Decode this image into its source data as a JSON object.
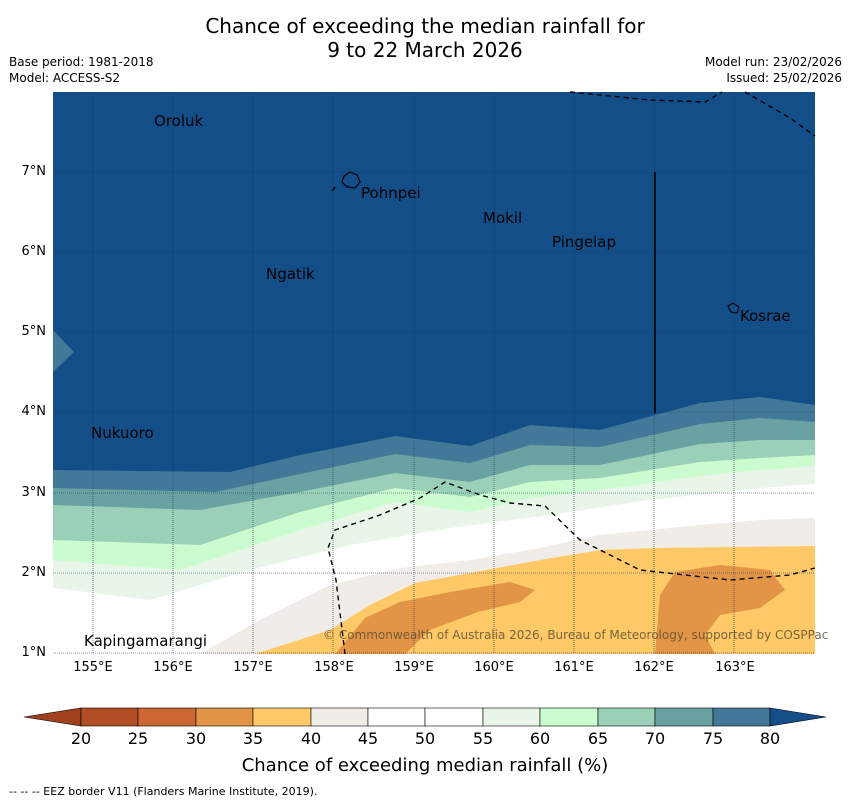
{
  "title": {
    "line1": "Chance of exceeding the median rainfall for",
    "line2": "9 to 22 March 2026"
  },
  "meta": {
    "base_period": "Base period: 1981-2018",
    "model": "Model: ACCESS-S2",
    "model_run": "Model run: 23/02/2026",
    "issued": "Issued: 25/02/2026"
  },
  "map": {
    "lat_labels": [
      "7°N",
      "6°N",
      "5°N",
      "4°N",
      "3°N",
      "2°N",
      "1°N"
    ],
    "lon_labels": [
      "155°E",
      "156°E",
      "157°E",
      "158°E",
      "159°E",
      "160°E",
      "161°E",
      "162°E",
      "163°E"
    ],
    "places": [
      "Oroluk",
      "Pohnpei",
      "Mokil",
      "Pingelap",
      "Ngatik",
      "Kosrae",
      "Nukuoro",
      "Kapingamarangi"
    ],
    "copyright": "© Commonwealth of Australia 2026, Bureau of Meteorology, supported by COSPPac"
  },
  "colorbar": {
    "ticks": [
      "20",
      "25",
      "30",
      "35",
      "40",
      "45",
      "50",
      "55",
      "60",
      "65",
      "70",
      "75",
      "80"
    ],
    "colors": [
      "#a1401e",
      "#b24d25",
      "#cc6633",
      "#e39547",
      "#fec966",
      "#f0ece8",
      "#ffffff",
      "#ffffff",
      "#e8f5e8",
      "#cbfcd0",
      "#9bd0b8",
      "#6aa1a3",
      "#427898",
      "#134e88"
    ],
    "label": "Chance of exceeding median rainfall (%)"
  },
  "footnote": "--  --  -- EEZ border V11 (Flanders Marine Institute, 2019)."
}
